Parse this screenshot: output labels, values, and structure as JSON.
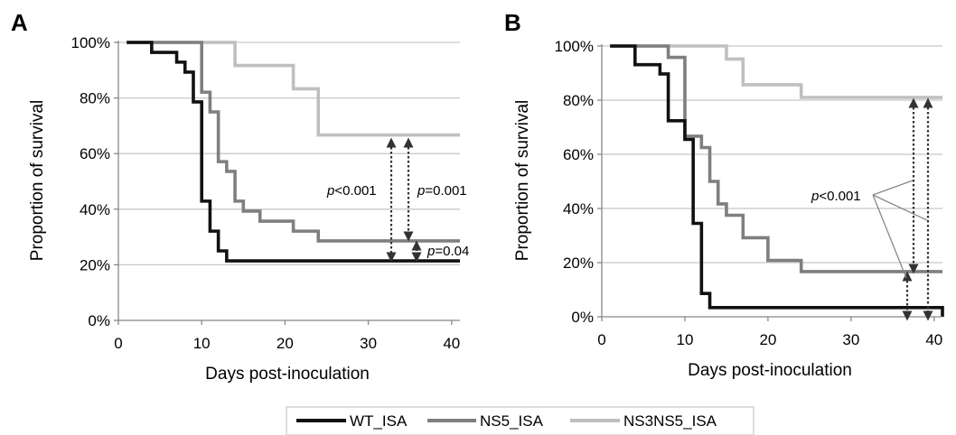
{
  "legend": [
    {
      "name": "WT_ISA",
      "color": "#111111"
    },
    {
      "name": "NS5_ISA",
      "color": "#7f7f7f"
    },
    {
      "name": "NS3NS5_ISA",
      "color": "#bfbfbf"
    }
  ],
  "chart_data": [
    {
      "panel": "A",
      "type": "line",
      "step": true,
      "xlabel": "Days post-inoculation",
      "ylabel": "Proportion of survival",
      "xlim": [
        0,
        41
      ],
      "ylim": [
        0,
        100
      ],
      "xticks": [
        "0",
        "10",
        "20",
        "30",
        "40"
      ],
      "yticks": [
        "0%",
        "20%",
        "40%",
        "60%",
        "80%",
        "100%"
      ],
      "grid": "horizontal",
      "series": [
        {
          "name": "WT_ISA",
          "color": "#111111",
          "x": [
            1,
            4,
            7,
            8,
            9,
            10,
            11,
            12,
            13,
            41
          ],
          "y": [
            100,
            96.4,
            92.9,
            89.3,
            78.6,
            42.9,
            32.1,
            25,
            21.4,
            21.4
          ]
        },
        {
          "name": "NS5_ISA",
          "color": "#7f7f7f",
          "x": [
            1,
            10,
            11,
            12,
            13,
            14,
            15,
            17,
            19,
            21,
            24,
            41
          ],
          "y": [
            100,
            82.1,
            75,
            57.1,
            53.6,
            42.9,
            39.3,
            35.7,
            35.7,
            32.1,
            28.6,
            28.6
          ]
        },
        {
          "name": "NS3NS5_ISA",
          "color": "#bfbfbf",
          "x": [
            1,
            14,
            21,
            24,
            41
          ],
          "y": [
            100,
            91.7,
            83.3,
            66.7,
            66.7
          ]
        }
      ],
      "annotations": [
        {
          "p_prefix": "p",
          "p_rest": "<0.001"
        },
        {
          "p_prefix": "p",
          "p_rest": "=0.001"
        },
        {
          "p_prefix": "p",
          "p_rest": "=0.04"
        }
      ]
    },
    {
      "panel": "B",
      "type": "line",
      "step": true,
      "xlabel": "Days post-inoculation",
      "ylabel": "Proportion of survival",
      "xlim": [
        0,
        41
      ],
      "ylim": [
        0,
        100
      ],
      "xticks": [
        "0",
        "10",
        "20",
        "30",
        "40"
      ],
      "yticks": [
        "0%",
        "20%",
        "40%",
        "60%",
        "80%",
        "100%"
      ],
      "grid": "horizontal",
      "series": [
        {
          "name": "WT_ISA",
          "color": "#111111",
          "x": [
            1,
            4,
            7,
            8,
            10,
            11,
            12,
            13,
            41
          ],
          "y": [
            100,
            93.1,
            89.7,
            72.4,
            65.5,
            34.5,
            8.6,
            3.4,
            0
          ]
        },
        {
          "name": "NS5_ISA",
          "color": "#7f7f7f",
          "x": [
            1,
            8,
            10,
            12,
            13,
            14,
            15,
            17,
            20,
            24,
            41
          ],
          "y": [
            100,
            95.8,
            66.7,
            62.5,
            50,
            41.7,
            37.5,
            29.2,
            20.8,
            16.7,
            16.7
          ]
        },
        {
          "name": "NS3NS5_ISA",
          "color": "#bfbfbf",
          "x": [
            1,
            15,
            17,
            24,
            41
          ],
          "y": [
            100,
            95.2,
            85.7,
            81,
            81
          ]
        }
      ],
      "annotations": [
        {
          "p_prefix": "p",
          "p_rest": "<0.001"
        }
      ]
    }
  ]
}
